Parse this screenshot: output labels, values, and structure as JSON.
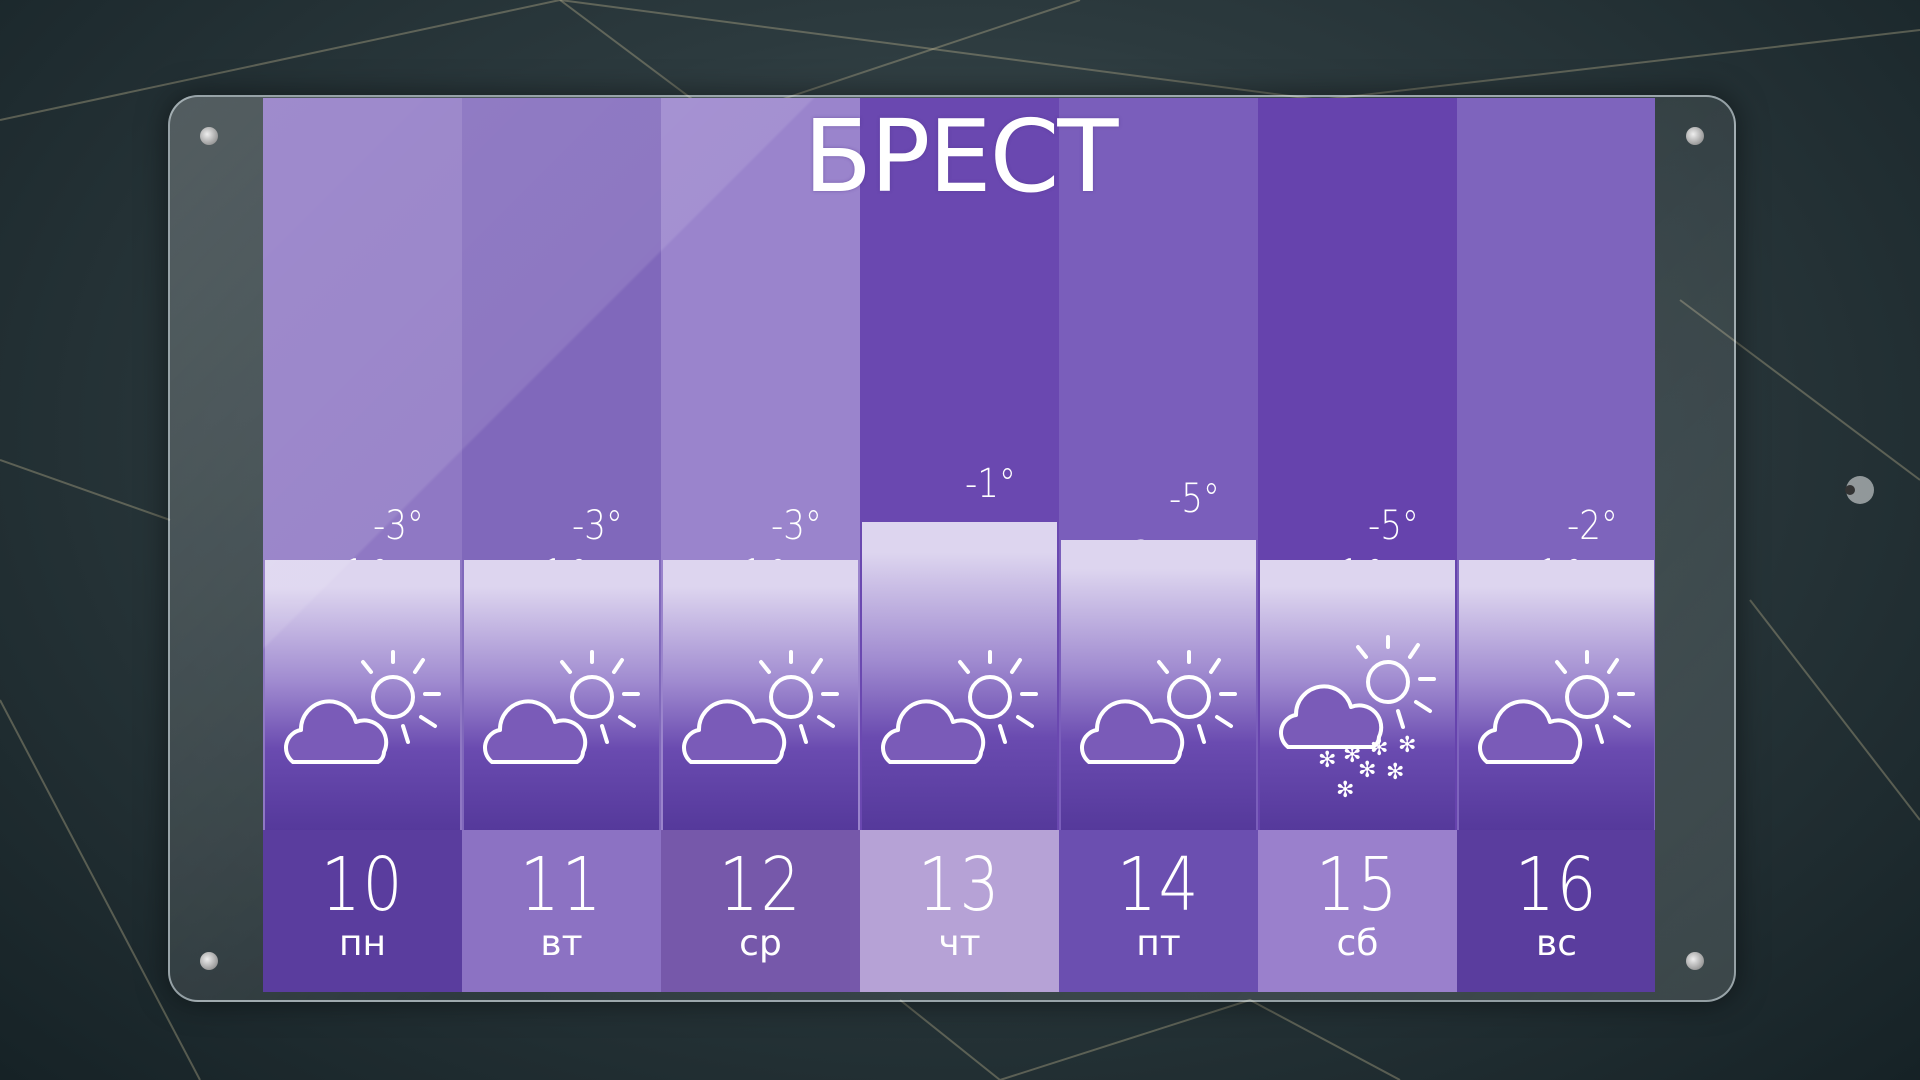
{
  "city": "БРЕСТ",
  "days": [
    {
      "date": "10",
      "weekday": "пн",
      "high": "+1°",
      "low": "-3°",
      "icon": "cloud-sun-icon",
      "top_color": "#8f78c4",
      "date_color": "#5a3d9e"
    },
    {
      "date": "11",
      "weekday": "вт",
      "high": "+1°",
      "low": "-3°",
      "icon": "cloud-sun-icon",
      "top_color": "#8068bb",
      "date_color": "#8c72c3"
    },
    {
      "date": "12",
      "weekday": "ср",
      "high": "+1°",
      "low": "-3°",
      "icon": "cloud-sun-icon",
      "top_color": "#9a84cc",
      "date_color": "#7658aa"
    },
    {
      "date": "13",
      "weekday": "чт",
      "high": "+3°",
      "low": "-1°",
      "icon": "cloud-sun-icon",
      "top_color": "#6a48b0",
      "date_color": "#b6a2d6"
    },
    {
      "date": "14",
      "weekday": "пт",
      "high": "+2°",
      "low": "-5°",
      "icon": "cloud-sun-icon",
      "top_color": "#7a5ebb",
      "date_color": "#6b4fb0"
    },
    {
      "date": "15",
      "weekday": "сб",
      "high": "+1°",
      "low": "-5°",
      "icon": "cloud-sun-snow-icon",
      "top_color": "#6643ad",
      "date_color": "#9a80cc"
    },
    {
      "date": "16",
      "weekday": "вс",
      "high": "+1°",
      "low": "-2°",
      "icon": "cloud-sun-icon",
      "top_color": "#7e64bd",
      "date_color": "#5a3d9e"
    }
  ]
}
